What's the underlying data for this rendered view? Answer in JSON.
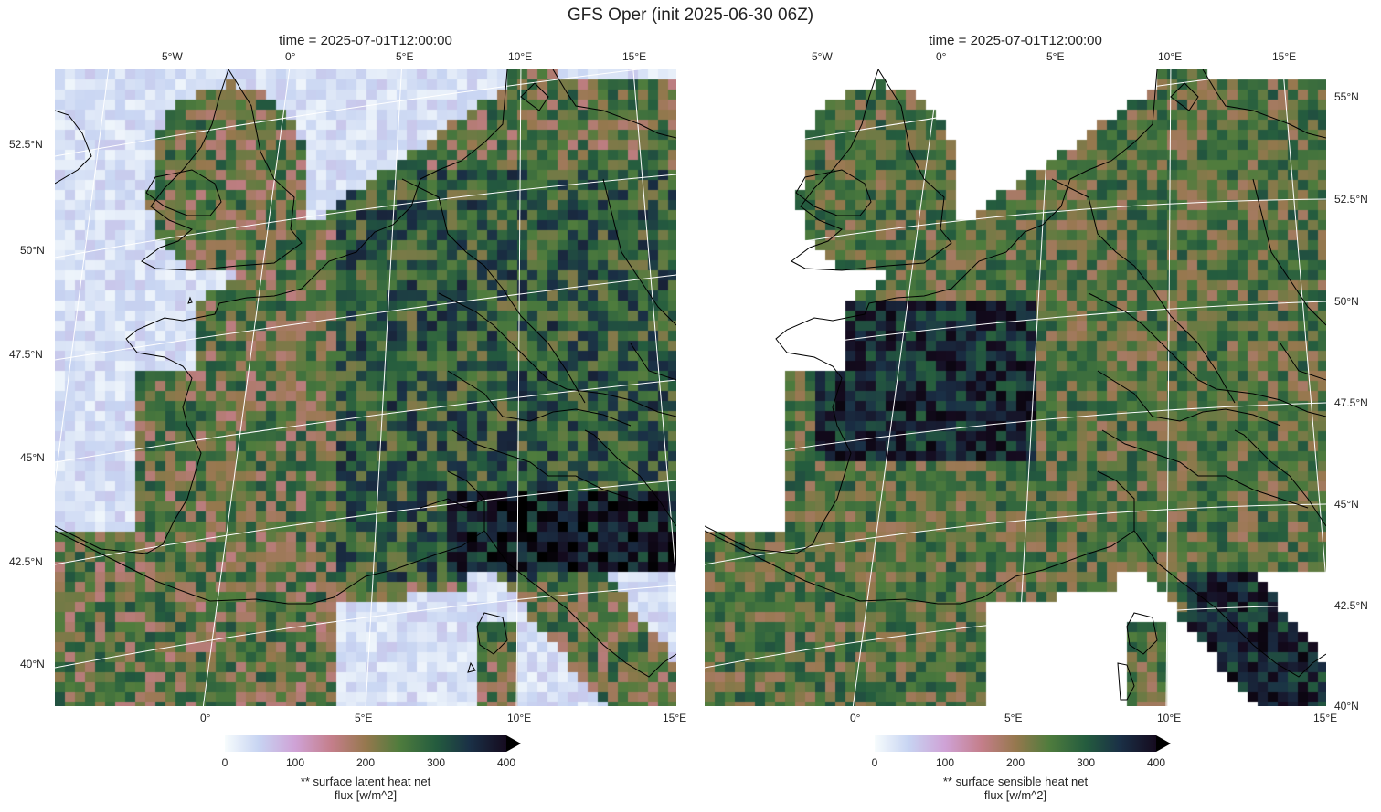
{
  "title": "GFS Oper (init 2025-06-30 06Z)",
  "panels": [
    {
      "time_label": "time = 2025-07-01T12:00:00",
      "top_lon_labels": [
        "5°W",
        "0°",
        "5°E",
        "10°E",
        "15°E"
      ],
      "bottom_lon_labels": [
        "0°",
        "5°E",
        "10°E",
        "15°E"
      ],
      "left_lat_labels": [
        "52.5°N",
        "50°N",
        "47.5°N",
        "45°N",
        "42.5°N",
        "40°N"
      ],
      "colorbar": {
        "ticks": [
          "0",
          "100",
          "200",
          "300",
          "400"
        ],
        "label_line1": "** surface latent heat net",
        "label_line2": "flux [w/m^2]",
        "extend": "max"
      }
    },
    {
      "time_label": "time = 2025-07-01T12:00:00",
      "top_lon_labels": [
        "5°W",
        "0°",
        "5°E",
        "10°E",
        "15°E"
      ],
      "bottom_lon_labels": [
        "0°",
        "5°E",
        "10°E",
        "15°E"
      ],
      "right_lat_labels": [
        "55°N",
        "52.5°N",
        "50°N",
        "47.5°N",
        "45°N",
        "42.5°N",
        "40°N"
      ],
      "colorbar": {
        "ticks": [
          "0",
          "100",
          "200",
          "300",
          "400"
        ],
        "label_line1": "** surface sensible heat net",
        "label_line2": "flux [w/m^2]",
        "extend": "max"
      }
    }
  ],
  "colormap": {
    "name": "cubehelix_r",
    "stops": [
      "#f7fcfd",
      "#c7d4f2",
      "#cfa2d6",
      "#c47e8a",
      "#96784e",
      "#4f7c3d",
      "#245c3e",
      "#1a3046",
      "#150b1f",
      "#000000"
    ]
  },
  "colors": {
    "coastline": "#000000",
    "gridline": "#ffffff"
  }
}
